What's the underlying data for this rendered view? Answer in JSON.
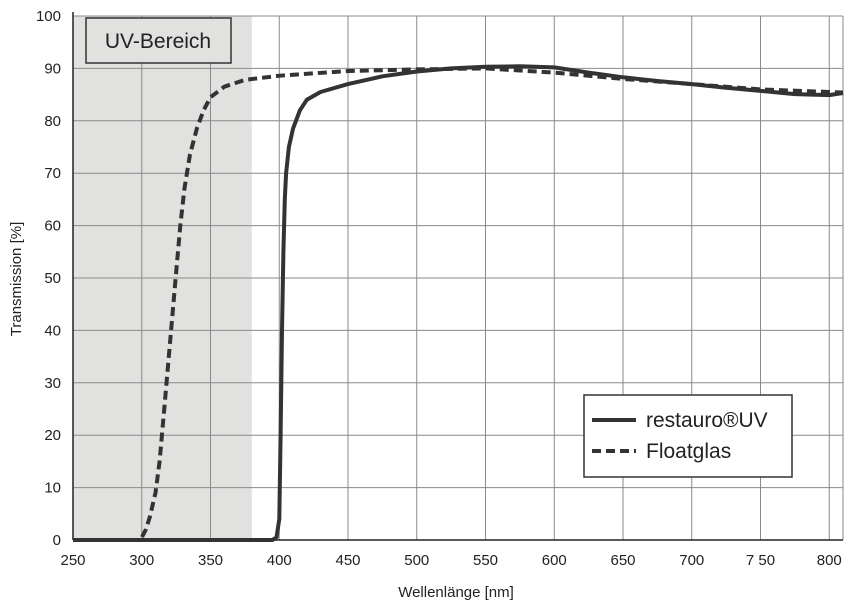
{
  "chart_data": {
    "type": "line",
    "xlabel": "Wellenlänge  [nm]",
    "ylabel": "Transmission  [%]",
    "xlim": [
      250,
      810
    ],
    "ylim": [
      0,
      100
    ],
    "xticks": [
      250,
      300,
      350,
      400,
      450,
      500,
      550,
      600,
      650,
      700,
      750,
      800
    ],
    "xtick_labels": [
      "250",
      "300",
      "350",
      "400",
      "450",
      "500",
      "550",
      "600",
      "650",
      "700",
      "7 50",
      "800"
    ],
    "yticks": [
      0,
      10,
      20,
      30,
      40,
      50,
      60,
      70,
      80,
      90,
      100
    ],
    "grid": true,
    "shaded_region": {
      "label": "UV-Bereich",
      "x_range": [
        250,
        380
      ],
      "color": "#e1e1e0"
    },
    "legend": {
      "position": "bottom-right"
    },
    "series": [
      {
        "name": "restauro®UV",
        "style": "solid",
        "color": "#333333",
        "points": [
          [
            250,
            0
          ],
          [
            395,
            0
          ],
          [
            398,
            0.5
          ],
          [
            400,
            4
          ],
          [
            401,
            20
          ],
          [
            402,
            40
          ],
          [
            403,
            55
          ],
          [
            404,
            65
          ],
          [
            405,
            70
          ],
          [
            407,
            75
          ],
          [
            410,
            78.5
          ],
          [
            415,
            82
          ],
          [
            420,
            84
          ],
          [
            430,
            85.5
          ],
          [
            450,
            87
          ],
          [
            475,
            88.5
          ],
          [
            500,
            89.4
          ],
          [
            525,
            90
          ],
          [
            550,
            90.3
          ],
          [
            575,
            90.4
          ],
          [
            600,
            90.2
          ],
          [
            625,
            89.2
          ],
          [
            650,
            88.3
          ],
          [
            675,
            87.6
          ],
          [
            700,
            87
          ],
          [
            725,
            86.3
          ],
          [
            750,
            85.7
          ],
          [
            775,
            85.1
          ],
          [
            800,
            84.9
          ],
          [
            810,
            85.3
          ]
        ]
      },
      {
        "name": "Floatglas",
        "style": "dashed",
        "color": "#333333",
        "points": [
          [
            250,
            0
          ],
          [
            297,
            0
          ],
          [
            300,
            0.5
          ],
          [
            303,
            2
          ],
          [
            306,
            4.5
          ],
          [
            310,
            9
          ],
          [
            313,
            15
          ],
          [
            316,
            24
          ],
          [
            319,
            33
          ],
          [
            322,
            42
          ],
          [
            325,
            51
          ],
          [
            328,
            60
          ],
          [
            331,
            67
          ],
          [
            335,
            73.5
          ],
          [
            340,
            78.5
          ],
          [
            345,
            82
          ],
          [
            350,
            84.5
          ],
          [
            360,
            86.5
          ],
          [
            375,
            87.8
          ],
          [
            400,
            88.6
          ],
          [
            450,
            89.5
          ],
          [
            500,
            89.8
          ],
          [
            550,
            90
          ],
          [
            600,
            89.2
          ],
          [
            650,
            88
          ],
          [
            700,
            87
          ],
          [
            750,
            86
          ],
          [
            800,
            85.5
          ],
          [
            810,
            85.4
          ]
        ]
      }
    ]
  }
}
